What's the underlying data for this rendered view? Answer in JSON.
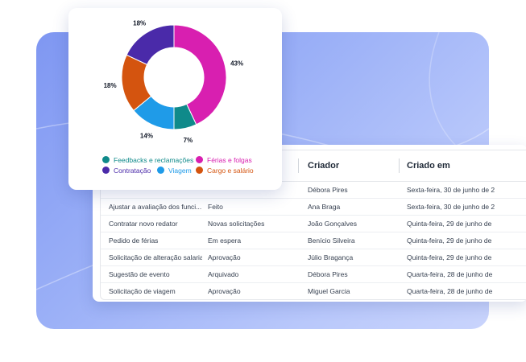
{
  "colors": {
    "feedbacks": "#0f8a8a",
    "ferias": "#d81fb0",
    "contratacao": "#4a2aa9",
    "viagem": "#1f9be8",
    "cargo": "#d4540f"
  },
  "chart_data": {
    "type": "pie",
    "variant": "donut",
    "slices": [
      {
        "name": "Férias e folgas",
        "value": 43,
        "label": "43%",
        "color": "#d81fb0"
      },
      {
        "name": "Feedbacks e reclamações",
        "value": 7,
        "label": "7%",
        "color": "#0f8a8a"
      },
      {
        "name": "Viagem",
        "value": 14,
        "label": "14%",
        "color": "#1f9be8"
      },
      {
        "name": "Cargo e salário",
        "value": 18,
        "label": "18%",
        "color": "#d4540f"
      },
      {
        "name": "Contratação",
        "value": 18,
        "label": "18%",
        "color": "#4a2aa9"
      }
    ],
    "legend": [
      {
        "label": "Feedbacks e reclamações",
        "color": "#0f8a8a"
      },
      {
        "label": "Férias e folgas",
        "color": "#d81fb0"
      },
      {
        "label": "Contratação",
        "color": "#4a2aa9"
      },
      {
        "label": "Viagem",
        "color": "#1f9be8"
      },
      {
        "label": "Cargo e salário",
        "color": "#d4540f"
      }
    ],
    "legend_placement": "bottom"
  },
  "table": {
    "headers": {
      "criador": "Criador",
      "criado_em": "Criado em"
    },
    "rows": [
      {
        "title": "",
        "status": "",
        "creator": "Débora Pires",
        "date": "Sexta-feira, 30 de junho de 2"
      },
      {
        "title": "Ajustar a avaliação dos funci...",
        "status": "Feito",
        "creator": "Ana Braga",
        "date": "Sexta-feira, 30 de junho de 2"
      },
      {
        "title": "Contratar novo redator",
        "status": "Novas solicitações",
        "creator": "João Gonçalves",
        "date": "Quinta-feira, 29 de junho de"
      },
      {
        "title": "Pedido de férias",
        "status": "Em espera",
        "creator": "Benício Silveira",
        "date": "Quinta-feira, 29 de junho de"
      },
      {
        "title": "Solicitação de alteração salarial",
        "status": "Aprovação",
        "creator": "Júlio Bragança",
        "date": "Quinta-feira, 29 de junho de"
      },
      {
        "title": "Sugestão de evento",
        "status": "Arquivado",
        "creator": "Débora Pires",
        "date": "Quarta-feira, 28 de junho de"
      },
      {
        "title": "Solicitação de viagem",
        "status": "Aprovação",
        "creator": "Miguel Garcia",
        "date": "Quarta-feira, 28 de junho de"
      }
    ]
  }
}
